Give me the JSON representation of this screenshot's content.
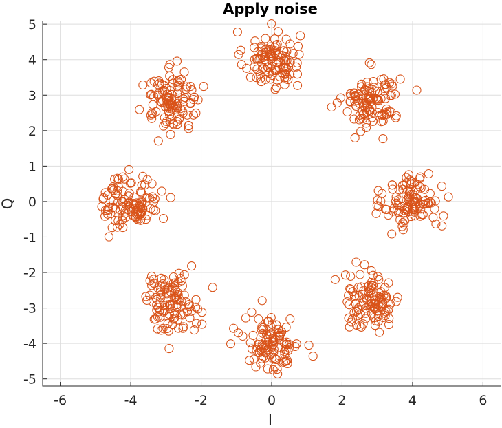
{
  "chart_data": {
    "type": "scatter",
    "title": "Apply noise",
    "xlabel": "I",
    "ylabel": "Q",
    "xlim": [
      -6.5,
      6.5
    ],
    "ylim": [
      -5.2,
      5.1
    ],
    "xticks": [
      -6,
      -4,
      -2,
      0,
      2,
      4,
      6
    ],
    "yticks": [
      -5,
      -4,
      -3,
      -2,
      -1,
      0,
      1,
      2,
      3,
      4,
      5
    ],
    "xtick_labels": [
      "-6",
      "-4",
      "-2",
      "0",
      "2",
      "4",
      "6"
    ],
    "ytick_labels": [
      "-5",
      "-4",
      "-3",
      "-2",
      "-1",
      "0",
      "1",
      "2",
      "3",
      "4",
      "5"
    ],
    "grid": true,
    "marker": "open-circle",
    "color": "#d95319",
    "cluster_centers": [
      [
        0.0,
        4.0
      ],
      [
        2.83,
        2.83
      ],
      [
        4.0,
        0.0
      ],
      [
        2.83,
        -2.83
      ],
      [
        0.0,
        -4.0
      ],
      [
        -2.83,
        -2.83
      ],
      [
        -4.0,
        0.0
      ],
      [
        -2.83,
        2.83
      ]
    ],
    "noise_std": 0.4,
    "points_per_cluster": 110
  }
}
